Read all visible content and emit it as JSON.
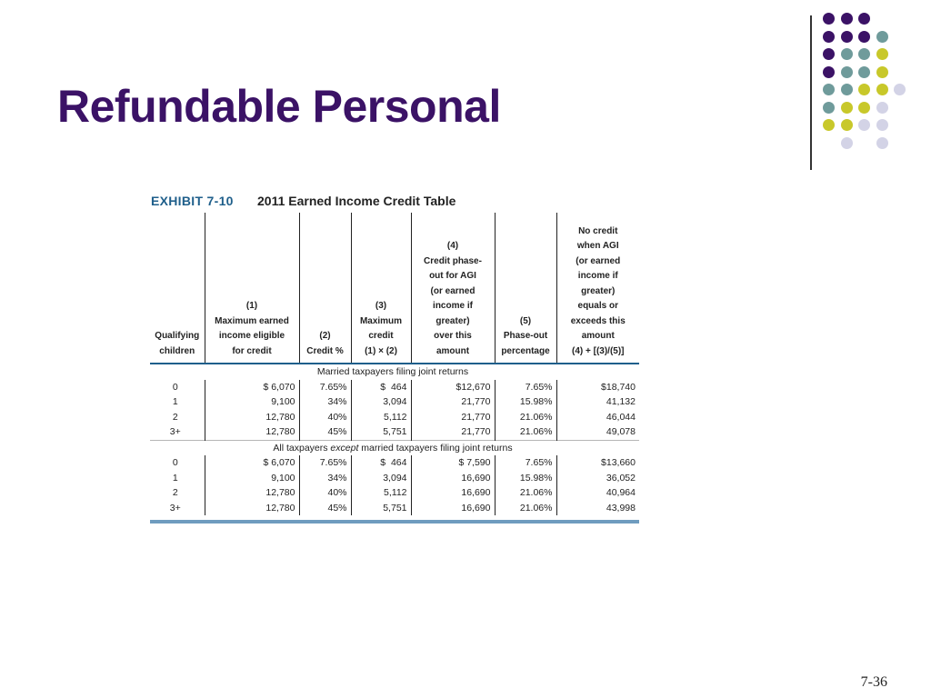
{
  "slide": {
    "title": "Refundable Personal",
    "number": "7-36"
  },
  "decor": {
    "colors": {
      "purple": "#3b1266",
      "teal": "#6f9b9b",
      "yellow": "#c8c82a",
      "lavender": "#d3d3e6"
    }
  },
  "exhibit": {
    "label": "EXHIBIT 7-10",
    "title": "2011 Earned Income Credit Table",
    "headers": [
      "Qualifying\nchildren",
      "(1)\nMaximum earned\nincome eligible\nfor credit",
      "(2)\nCredit %",
      "(3)\nMaximum\ncredit\n(1) × (2)",
      "(4)\nCredit phase-\nout for AGI\n(or earned\nincome if\ngreater)\nover this\namount",
      "(5)\nPhase-out\npercentage",
      "No credit\nwhen AGI\n(or earned\nincome if\ngreater)\nequals or\nexceeds this\namount\n(4) + [(3)/(5)]"
    ],
    "groups": [
      {
        "caption": "Married taxpayers filing joint returns",
        "rows": [
          [
            "0",
            "$ 6,070",
            "7.65%",
            "$  464",
            "$12,670",
            "7.65%",
            "$18,740"
          ],
          [
            "1",
            "9,100",
            "34%",
            "3,094",
            "21,770",
            "15.98%",
            "41,132"
          ],
          [
            "2",
            "12,780",
            "40%",
            "5,112",
            "21,770",
            "21.06%",
            "46,044"
          ],
          [
            "3+",
            "12,780",
            "45%",
            "5,751",
            "21,770",
            "21.06%",
            "49,078"
          ]
        ]
      },
      {
        "caption_pre": "All taxpayers ",
        "caption_em": "except",
        "caption_post": " married taxpayers filing joint returns",
        "rows": [
          [
            "0",
            "$ 6,070",
            "7.65%",
            "$  464",
            "$ 7,590",
            "7.65%",
            "$13,660"
          ],
          [
            "1",
            "9,100",
            "34%",
            "3,094",
            "16,690",
            "15.98%",
            "36,052"
          ],
          [
            "2",
            "12,780",
            "40%",
            "5,112",
            "16,690",
            "21.06%",
            "40,964"
          ],
          [
            "3+",
            "12,780",
            "45%",
            "5,751",
            "16,690",
            "21.06%",
            "43,998"
          ]
        ]
      }
    ]
  }
}
